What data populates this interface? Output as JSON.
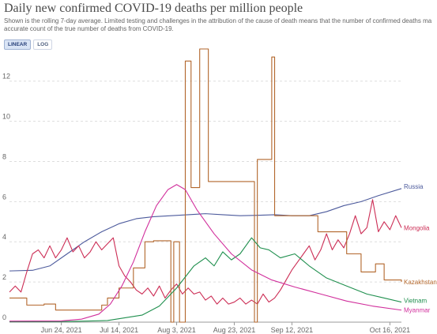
{
  "header": {
    "title": "Daily new confirmed COVID-19 deaths per million people",
    "subtitle": "Shown is the rolling 7-day average. Limited testing and challenges in the attribution of the cause of death means that the number of confirmed deaths ma accurate count of the true number of deaths from COVID-19."
  },
  "toggles": {
    "linear": "LINEAR",
    "log": "LOG",
    "active": "linear"
  },
  "chart_data": {
    "type": "line",
    "title": "Daily new confirmed COVID-19 deaths per million people",
    "x_axis": {
      "type": "date",
      "min": "2021-06-06",
      "max": "2021-10-20",
      "ticks": [
        "2021-06-24",
        "2021-07-14",
        "2021-08-03",
        "2021-08-23",
        "2021-09-12",
        "2021-10-16"
      ],
      "tick_labels": [
        "Jun 24, 2021",
        "Jul 14, 2021",
        "Aug 3, 2021",
        "Aug 23, 2021",
        "Sep 12, 2021",
        "Oct 16, 2021"
      ]
    },
    "y_axis": {
      "min": 0,
      "max": 13.6,
      "ticks": [
        0,
        2,
        4,
        6,
        8,
        10,
        12
      ]
    },
    "grid": "horizontal dashed",
    "series": [
      {
        "name": "Russia",
        "color": "#4c5a9c",
        "mode": "line",
        "points": [
          [
            "2021-06-06",
            2.55
          ],
          [
            "2021-06-14",
            2.58
          ],
          [
            "2021-06-20",
            2.8
          ],
          [
            "2021-06-26",
            3.4
          ],
          [
            "2021-07-02",
            4.0
          ],
          [
            "2021-07-08",
            4.5
          ],
          [
            "2021-07-14",
            4.9
          ],
          [
            "2021-07-20",
            5.15
          ],
          [
            "2021-07-26",
            5.25
          ],
          [
            "2021-08-01",
            5.3
          ],
          [
            "2021-08-07",
            5.35
          ],
          [
            "2021-08-13",
            5.4
          ],
          [
            "2021-08-19",
            5.35
          ],
          [
            "2021-08-25",
            5.3
          ],
          [
            "2021-08-31",
            5.32
          ],
          [
            "2021-09-06",
            5.35
          ],
          [
            "2021-09-12",
            5.3
          ],
          [
            "2021-09-18",
            5.3
          ],
          [
            "2021-09-24",
            5.5
          ],
          [
            "2021-09-30",
            5.8
          ],
          [
            "2021-10-06",
            6.0
          ],
          [
            "2021-10-12",
            6.3
          ],
          [
            "2021-10-20",
            6.65
          ]
        ]
      },
      {
        "name": "Mongolia",
        "color": "#cc2d55",
        "mode": "line",
        "points": [
          [
            "2021-06-06",
            1.5
          ],
          [
            "2021-06-08",
            1.8
          ],
          [
            "2021-06-10",
            1.5
          ],
          [
            "2021-06-12",
            2.5
          ],
          [
            "2021-06-14",
            3.4
          ],
          [
            "2021-06-16",
            3.6
          ],
          [
            "2021-06-18",
            3.2
          ],
          [
            "2021-06-20",
            3.8
          ],
          [
            "2021-06-22",
            3.2
          ],
          [
            "2021-06-24",
            3.6
          ],
          [
            "2021-06-26",
            4.2
          ],
          [
            "2021-06-28",
            3.5
          ],
          [
            "2021-06-30",
            3.8
          ],
          [
            "2021-07-02",
            3.2
          ],
          [
            "2021-07-04",
            3.5
          ],
          [
            "2021-07-06",
            4.0
          ],
          [
            "2021-07-08",
            3.6
          ],
          [
            "2021-07-10",
            3.9
          ],
          [
            "2021-07-12",
            4.2
          ],
          [
            "2021-07-14",
            2.8
          ],
          [
            "2021-07-16",
            2.3
          ],
          [
            "2021-07-18",
            2.0
          ],
          [
            "2021-07-20",
            1.6
          ],
          [
            "2021-07-22",
            1.4
          ],
          [
            "2021-07-24",
            1.7
          ],
          [
            "2021-07-26",
            1.3
          ],
          [
            "2021-07-28",
            1.8
          ],
          [
            "2021-07-30",
            1.2
          ],
          [
            "2021-08-01",
            1.6
          ],
          [
            "2021-08-03",
            1.9
          ],
          [
            "2021-08-05",
            1.4
          ],
          [
            "2021-08-07",
            1.7
          ],
          [
            "2021-08-09",
            1.4
          ],
          [
            "2021-08-11",
            1.5
          ],
          [
            "2021-08-13",
            1.1
          ],
          [
            "2021-08-15",
            1.3
          ],
          [
            "2021-08-17",
            0.9
          ],
          [
            "2021-08-19",
            1.2
          ],
          [
            "2021-08-21",
            0.9
          ],
          [
            "2021-08-23",
            1.0
          ],
          [
            "2021-08-25",
            1.2
          ],
          [
            "2021-08-27",
            0.9
          ],
          [
            "2021-08-29",
            1.1
          ],
          [
            "2021-08-31",
            0.9
          ],
          [
            "2021-09-02",
            1.4
          ],
          [
            "2021-09-04",
            1.0
          ],
          [
            "2021-09-06",
            1.2
          ],
          [
            "2021-09-08",
            1.6
          ],
          [
            "2021-09-10",
            2.1
          ],
          [
            "2021-09-12",
            2.6
          ],
          [
            "2021-09-14",
            3.0
          ],
          [
            "2021-09-16",
            3.4
          ],
          [
            "2021-09-18",
            3.8
          ],
          [
            "2021-09-20",
            3.1
          ],
          [
            "2021-09-22",
            3.6
          ],
          [
            "2021-09-24",
            4.4
          ],
          [
            "2021-09-26",
            3.6
          ],
          [
            "2021-09-28",
            4.1
          ],
          [
            "2021-09-30",
            3.7
          ],
          [
            "2021-10-02",
            4.4
          ],
          [
            "2021-10-04",
            5.3
          ],
          [
            "2021-10-06",
            4.4
          ],
          [
            "2021-10-08",
            4.7
          ],
          [
            "2021-10-10",
            6.1
          ],
          [
            "2021-10-12",
            4.5
          ],
          [
            "2021-10-14",
            5.0
          ],
          [
            "2021-10-16",
            4.6
          ],
          [
            "2021-10-18",
            5.3
          ],
          [
            "2021-10-20",
            4.7
          ]
        ]
      },
      {
        "name": "Kazakhstan",
        "color": "#b2662b",
        "mode": "step",
        "points": [
          [
            "2021-06-06",
            1.2
          ],
          [
            "2021-06-12",
            0.85
          ],
          [
            "2021-06-18",
            0.9
          ],
          [
            "2021-06-22",
            0.6
          ],
          [
            "2021-07-08",
            0.85
          ],
          [
            "2021-07-10",
            1.2
          ],
          [
            "2021-07-14",
            1.7
          ],
          [
            "2021-07-19",
            2.7
          ],
          [
            "2021-07-23",
            4.0
          ],
          [
            "2021-07-26",
            4.05
          ],
          [
            "2021-08-01",
            0.0
          ],
          [
            "2021-08-02",
            4.0
          ],
          [
            "2021-08-04",
            0.0
          ],
          [
            "2021-08-06",
            13.0
          ],
          [
            "2021-08-08",
            6.7
          ],
          [
            "2021-08-11",
            13.6
          ],
          [
            "2021-08-14",
            7.0
          ],
          [
            "2021-08-30",
            0.0
          ],
          [
            "2021-08-31",
            8.1
          ],
          [
            "2021-09-05",
            13.2
          ],
          [
            "2021-09-06",
            5.3
          ],
          [
            "2021-09-16",
            5.3
          ],
          [
            "2021-09-21",
            4.5
          ],
          [
            "2021-09-27",
            4.5
          ],
          [
            "2021-10-01",
            3.4
          ],
          [
            "2021-10-06",
            2.5
          ],
          [
            "2021-10-11",
            2.9
          ],
          [
            "2021-10-14",
            2.1
          ],
          [
            "2021-10-20",
            2.0
          ]
        ]
      },
      {
        "name": "Vietnam",
        "color": "#1f8f4e",
        "mode": "line",
        "points": [
          [
            "2021-06-06",
            0.02
          ],
          [
            "2021-06-26",
            0.03
          ],
          [
            "2021-07-10",
            0.08
          ],
          [
            "2021-07-22",
            0.35
          ],
          [
            "2021-07-28",
            0.8
          ],
          [
            "2021-08-03",
            1.7
          ],
          [
            "2021-08-09",
            2.8
          ],
          [
            "2021-08-13",
            3.2
          ],
          [
            "2021-08-16",
            2.8
          ],
          [
            "2021-08-19",
            3.5
          ],
          [
            "2021-08-22",
            3.1
          ],
          [
            "2021-08-25",
            3.4
          ],
          [
            "2021-08-29",
            4.2
          ],
          [
            "2021-09-01",
            3.7
          ],
          [
            "2021-09-04",
            3.6
          ],
          [
            "2021-09-08",
            3.2
          ],
          [
            "2021-09-13",
            3.4
          ],
          [
            "2021-09-18",
            2.8
          ],
          [
            "2021-09-24",
            2.2
          ],
          [
            "2021-10-01",
            1.8
          ],
          [
            "2021-10-08",
            1.4
          ],
          [
            "2021-10-14",
            1.2
          ],
          [
            "2021-10-20",
            1.0
          ]
        ]
      },
      {
        "name": "Myanmar",
        "color": "#d12f9c",
        "mode": "line",
        "points": [
          [
            "2021-06-06",
            0.05
          ],
          [
            "2021-06-24",
            0.06
          ],
          [
            "2021-07-01",
            0.15
          ],
          [
            "2021-07-07",
            0.4
          ],
          [
            "2021-07-11",
            0.9
          ],
          [
            "2021-07-15",
            1.8
          ],
          [
            "2021-07-19",
            3.0
          ],
          [
            "2021-07-23",
            4.5
          ],
          [
            "2021-07-27",
            5.8
          ],
          [
            "2021-07-31",
            6.6
          ],
          [
            "2021-08-03",
            6.85
          ],
          [
            "2021-08-06",
            6.6
          ],
          [
            "2021-08-10",
            5.6
          ],
          [
            "2021-08-16",
            4.4
          ],
          [
            "2021-08-22",
            3.4
          ],
          [
            "2021-08-29",
            2.6
          ],
          [
            "2021-09-05",
            2.1
          ],
          [
            "2021-09-13",
            1.75
          ],
          [
            "2021-09-22",
            1.4
          ],
          [
            "2021-10-01",
            1.05
          ],
          [
            "2021-10-10",
            0.8
          ],
          [
            "2021-10-20",
            0.6
          ]
        ]
      }
    ]
  }
}
